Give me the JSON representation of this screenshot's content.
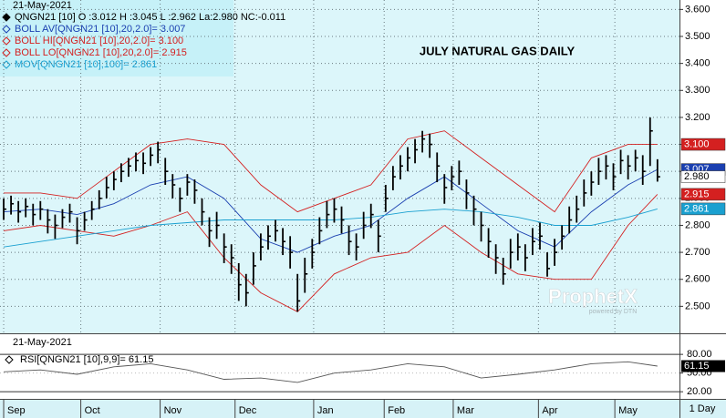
{
  "header": {
    "date": "21-May-2021",
    "lines": [
      {
        "text": "QNGN21 [10] O :3.012 H :3.045 L :2.962 La:2.980 NC:-0.011",
        "color": "#000000"
      },
      {
        "text": "BOLL AV[QNGN21 [10],20,2.0]= 3.007",
        "color": "#1a3fb0"
      },
      {
        "text": "BOLL HI[QNGN21 [10],20,2.0]= 3.100",
        "color": "#d42020"
      },
      {
        "text": "BOLL LO[QNGN21 [10],20,2.0]= 2.915",
        "color": "#d42020"
      },
      {
        "text": "MOV[QNGN21 [10],100]= 2.861",
        "color": "#1aa0d0"
      }
    ]
  },
  "chart_data": [
    {
      "type": "ohlc",
      "title": "JULY NATURAL GAS DAILY",
      "watermark": "ProphetX",
      "watermark_sub": "powered by DTN",
      "color": "#000000",
      "last_label": "2.980",
      "high": [
        2.9,
        2.91,
        2.89,
        2.9,
        2.88,
        2.89,
        2.86,
        2.84,
        2.86,
        2.88,
        2.83,
        2.85,
        2.89,
        2.93,
        2.98,
        3.0,
        3.03,
        3.05,
        3.07,
        3.07,
        3.09,
        3.11,
        3.05,
        2.99,
        2.94,
        2.99,
        2.97,
        2.9,
        2.83,
        2.85,
        2.77,
        2.73,
        2.66,
        2.62,
        2.7,
        2.77,
        2.8,
        2.82,
        2.79,
        2.76,
        2.62,
        2.68,
        2.75,
        2.83,
        2.89,
        2.9,
        2.87,
        2.8,
        2.77,
        2.85,
        2.88,
        2.82,
        2.95,
        3.02,
        3.06,
        3.09,
        3.12,
        3.15,
        3.14,
        3.07,
        2.99,
        3.02,
        3.04,
        2.97,
        2.91,
        2.85,
        2.79,
        2.73,
        2.68,
        2.75,
        2.77,
        2.73,
        2.79,
        2.81,
        2.7,
        2.75,
        2.8,
        2.87,
        2.91,
        2.97,
        3.0,
        3.05,
        3.06,
        3.03,
        3.08,
        3.06,
        3.08,
        3.06,
        3.2,
        3.045
      ],
      "low": [
        2.82,
        2.84,
        2.81,
        2.83,
        2.8,
        2.82,
        2.77,
        2.75,
        2.79,
        2.81,
        2.73,
        2.78,
        2.82,
        2.86,
        2.9,
        2.93,
        2.96,
        2.98,
        3.0,
        2.99,
        3.02,
        3.03,
        2.95,
        2.9,
        2.85,
        2.91,
        2.88,
        2.8,
        2.72,
        2.75,
        2.66,
        2.62,
        2.52,
        2.5,
        2.58,
        2.67,
        2.71,
        2.74,
        2.69,
        2.64,
        2.48,
        2.55,
        2.64,
        2.73,
        2.79,
        2.81,
        2.77,
        2.69,
        2.67,
        2.75,
        2.79,
        2.7,
        2.85,
        2.93,
        2.97,
        3.0,
        3.03,
        3.07,
        3.05,
        2.96,
        2.88,
        2.93,
        2.95,
        2.86,
        2.8,
        2.74,
        2.68,
        2.62,
        2.58,
        2.64,
        2.67,
        2.63,
        2.69,
        2.71,
        2.61,
        2.65,
        2.71,
        2.77,
        2.81,
        2.87,
        2.91,
        2.95,
        2.97,
        2.93,
        2.99,
        2.97,
        3.0,
        2.95,
        3.02,
        2.962
      ],
      "close": [
        2.86,
        2.88,
        2.85,
        2.87,
        2.84,
        2.86,
        2.82,
        2.8,
        2.83,
        2.85,
        2.78,
        2.82,
        2.86,
        2.9,
        2.94,
        2.97,
        3.0,
        3.02,
        3.04,
        3.03,
        3.06,
        3.08,
        3.0,
        2.95,
        2.9,
        2.96,
        2.93,
        2.85,
        2.78,
        2.8,
        2.72,
        2.68,
        2.58,
        2.55,
        2.65,
        2.72,
        2.76,
        2.78,
        2.74,
        2.7,
        2.52,
        2.62,
        2.7,
        2.78,
        2.84,
        2.86,
        2.82,
        2.74,
        2.72,
        2.8,
        2.84,
        2.76,
        2.9,
        2.98,
        3.02,
        3.05,
        3.08,
        3.12,
        3.1,
        3.02,
        2.94,
        2.98,
        3.0,
        2.92,
        2.86,
        2.8,
        2.74,
        2.68,
        2.62,
        2.7,
        2.72,
        2.68,
        2.74,
        2.76,
        2.64,
        2.7,
        2.76,
        2.82,
        2.86,
        2.92,
        2.96,
        3.0,
        3.02,
        2.98,
        3.04,
        3.02,
        3.05,
        3.0,
        3.15,
        2.98
      ],
      "lines": [
        {
          "name": "BOLL HI",
          "color": "#d42020",
          "value_label": "3.100",
          "x": [
            0,
            5,
            10,
            15,
            20,
            25,
            30,
            35,
            40,
            45,
            50,
            55,
            60,
            65,
            70,
            75,
            80,
            85,
            89
          ],
          "values": [
            2.92,
            2.92,
            2.9,
            3.0,
            3.1,
            3.12,
            3.1,
            2.95,
            2.85,
            2.9,
            2.95,
            3.12,
            3.15,
            3.05,
            2.95,
            2.85,
            3.05,
            3.1,
            3.1
          ]
        },
        {
          "name": "BOLL AV",
          "color": "#1a3fb0",
          "value_label": "3.007",
          "x": [
            0,
            5,
            10,
            15,
            20,
            25,
            30,
            35,
            40,
            45,
            50,
            55,
            60,
            65,
            70,
            75,
            80,
            85,
            89
          ],
          "values": [
            2.85,
            2.86,
            2.84,
            2.88,
            2.95,
            2.98,
            2.9,
            2.75,
            2.7,
            2.76,
            2.8,
            2.9,
            2.98,
            2.88,
            2.78,
            2.72,
            2.85,
            2.95,
            3.007
          ]
        },
        {
          "name": "BOLL LO",
          "color": "#d42020",
          "value_label": "2.915",
          "x": [
            0,
            5,
            10,
            15,
            20,
            25,
            30,
            35,
            40,
            45,
            50,
            55,
            60,
            65,
            70,
            75,
            80,
            85,
            89
          ],
          "values": [
            2.78,
            2.8,
            2.78,
            2.76,
            2.8,
            2.85,
            2.68,
            2.55,
            2.48,
            2.62,
            2.68,
            2.7,
            2.8,
            2.7,
            2.62,
            2.6,
            2.6,
            2.8,
            2.915
          ]
        },
        {
          "name": "MOV",
          "color": "#1aa0d0",
          "value_label": "2.861",
          "x": [
            0,
            5,
            10,
            15,
            20,
            25,
            30,
            35,
            40,
            45,
            50,
            55,
            60,
            65,
            70,
            75,
            80,
            85,
            89
          ],
          "values": [
            2.72,
            2.74,
            2.76,
            2.78,
            2.8,
            2.81,
            2.82,
            2.82,
            2.82,
            2.82,
            2.83,
            2.85,
            2.86,
            2.85,
            2.83,
            2.8,
            2.8,
            2.83,
            2.861
          ]
        }
      ],
      "xlim": [
        -0.5,
        92
      ],
      "ylim": [
        2.4,
        3.635
      ],
      "yticks": [
        {
          "value": 3.6,
          "label": "3.600"
        },
        {
          "value": 3.5,
          "label": "3.500"
        },
        {
          "value": 3.4,
          "label": "3.400"
        },
        {
          "value": 3.3,
          "label": "3.300"
        },
        {
          "value": 3.2,
          "label": "3.200"
        },
        {
          "value": 3.1,
          "label": "3.100"
        },
        {
          "value": 3.0,
          "label": "3.000"
        },
        {
          "value": 2.9,
          "label": "2.900"
        },
        {
          "value": 2.8,
          "label": "2.800"
        },
        {
          "value": 2.7,
          "label": "2.700"
        },
        {
          "value": 2.6,
          "label": "2.600"
        },
        {
          "value": 2.5,
          "label": "2.500"
        }
      ],
      "xticks": [
        {
          "value": 0,
          "label": "Sep"
        },
        {
          "value": 10.5,
          "label": "Oct"
        },
        {
          "value": 21.3,
          "label": "Nov"
        },
        {
          "value": 31.5,
          "label": "Dec"
        },
        {
          "value": 42.2,
          "label": "Jan"
        },
        {
          "value": 51.8,
          "label": "Feb"
        },
        {
          "value": 61.2,
          "label": "Mar"
        },
        {
          "value": 72.8,
          "label": "Apr"
        },
        {
          "value": 83.2,
          "label": "May"
        }
      ],
      "period": "1 Day",
      "grid": true
    },
    {
      "type": "line",
      "date": "21-May-2021",
      "legend": "RSI[QNGN21 [10],9,9]= 61.15",
      "series": [
        {
          "name": "RSI",
          "color": "#555555",
          "value_label": "61.15",
          "x": [
            0,
            5,
            10,
            15,
            20,
            25,
            30,
            35,
            40,
            45,
            50,
            55,
            60,
            65,
            70,
            75,
            80,
            85,
            89
          ],
          "values": [
            52,
            55,
            48,
            60,
            65,
            55,
            40,
            42,
            35,
            50,
            55,
            65,
            60,
            42,
            48,
            55,
            65,
            68,
            61.15
          ]
        }
      ],
      "ylim": [
        10,
        108
      ],
      "yticks": [
        {
          "value": 80,
          "label": "80.00"
        },
        {
          "value": 50,
          "label": "50.00"
        },
        {
          "value": 20,
          "label": "20.00"
        }
      ]
    }
  ]
}
